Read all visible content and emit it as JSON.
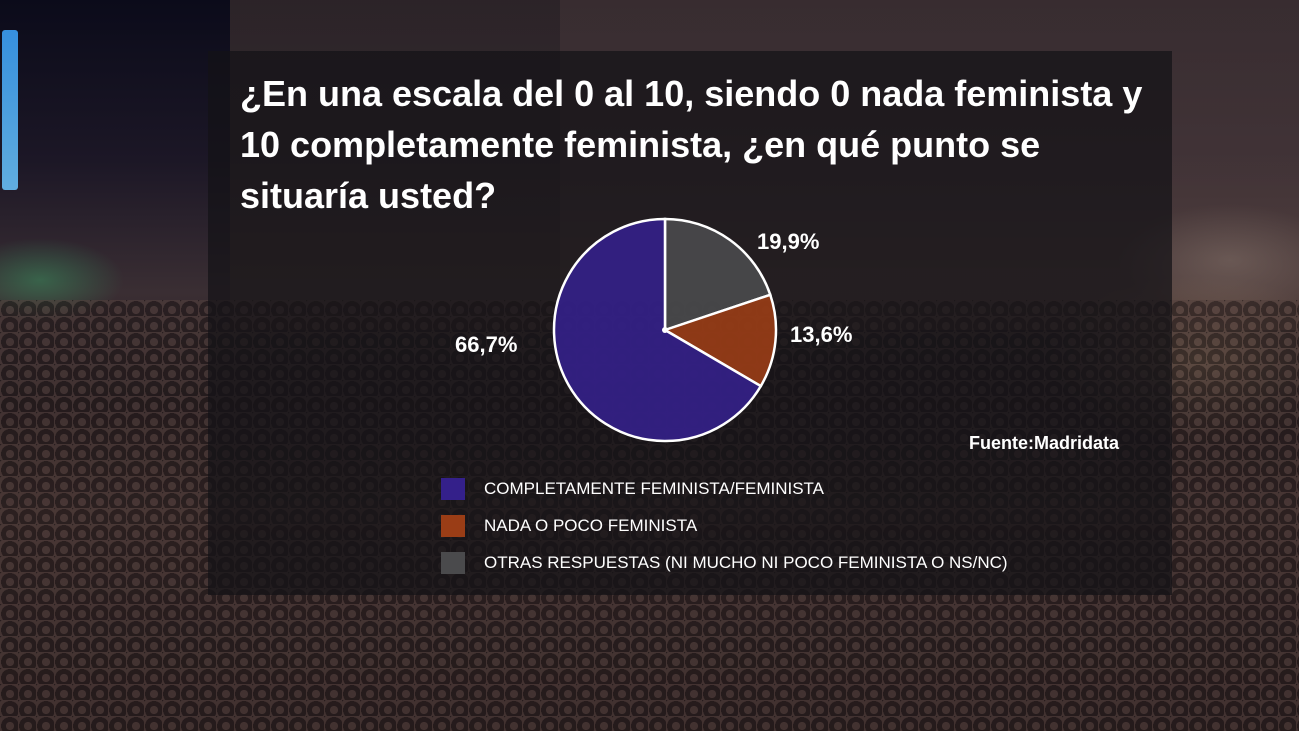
{
  "chart_data": {
    "type": "pie",
    "title": "¿En una escala del 0 al 10, siendo 0 nada feminista y 10 completamente feminista, ¿en qué punto se situaría usted?",
    "series": [
      {
        "name": "COMPLETAMENTE FEMINISTA/FEMINISTA",
        "value": 66.7,
        "label": "66,7%",
        "color": "#34208a"
      },
      {
        "name": "NADA O POCO FEMINISTA",
        "value": 13.6,
        "label": "13,6%",
        "color": "#9a3d16"
      },
      {
        "name": "OTRAS RESPUESTAS (NI MUCHO NI POCO FEMINISTA O NS/NC)",
        "value": 19.9,
        "label": "19,9%",
        "color": "#4a4a4c"
      }
    ],
    "legend_position": "bottom"
  },
  "source_text": "Fuente:Madridata"
}
